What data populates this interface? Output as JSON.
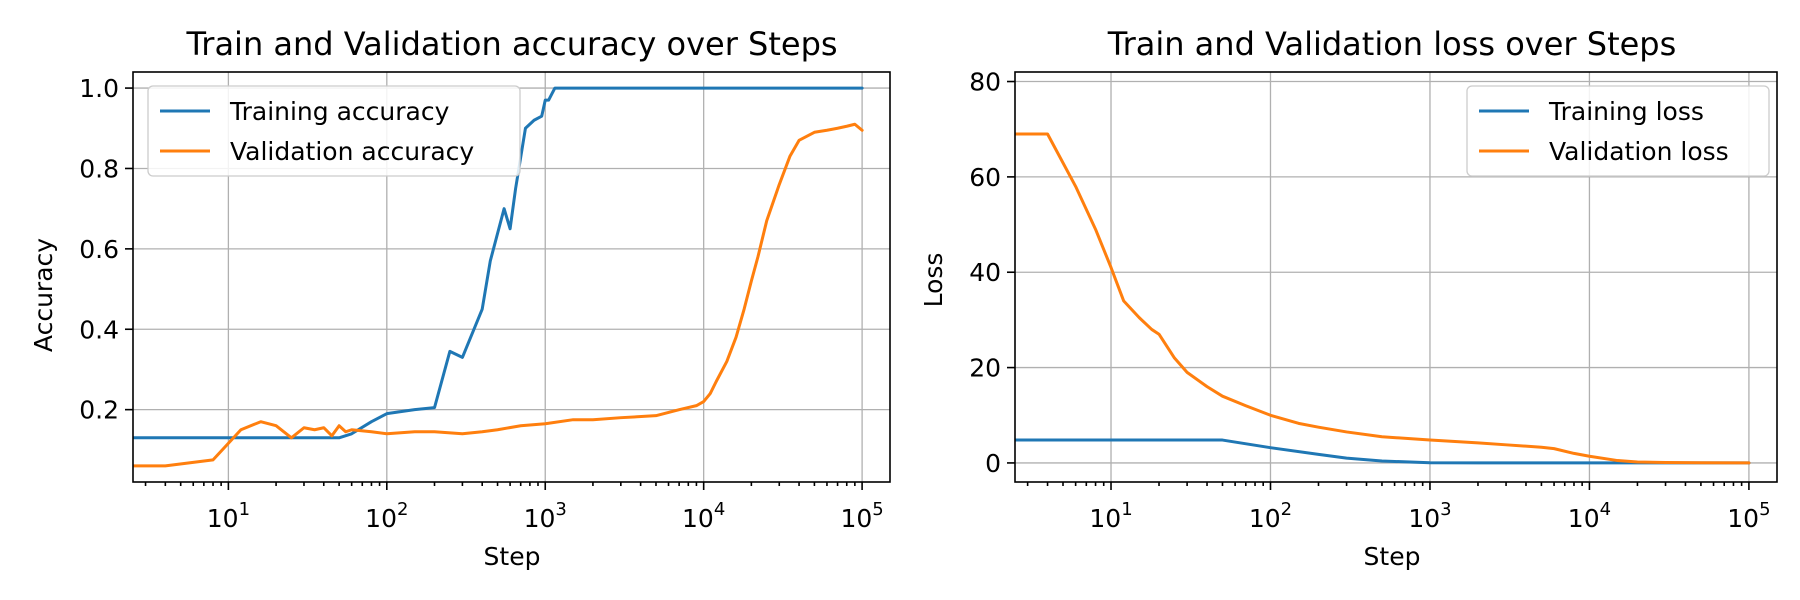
{
  "chart_data": [
    {
      "type": "line",
      "title": "Train and Validation accuracy over Steps",
      "xlabel": "Step",
      "ylabel": "Accuracy",
      "xscale": "log",
      "xlim": [
        2.5,
        150000
      ],
      "ylim": [
        0.02,
        1.04
      ],
      "xticks": [
        10,
        100,
        1000,
        10000,
        100000
      ],
      "xtick_labels": [
        {
          "base": "10",
          "exp": "1"
        },
        {
          "base": "10",
          "exp": "2"
        },
        {
          "base": "10",
          "exp": "3"
        },
        {
          "base": "10",
          "exp": "4"
        },
        {
          "base": "10",
          "exp": "5"
        }
      ],
      "yticks": [
        0.2,
        0.4,
        0.6,
        0.8,
        1.0
      ],
      "ytick_labels": [
        "0.2",
        "0.4",
        "0.6",
        "0.8",
        "1.0"
      ],
      "grid": true,
      "legend": "top-left",
      "series": [
        {
          "name": "Training accuracy",
          "color": "#1f77b4",
          "x": [
            2,
            10,
            20,
            50,
            60,
            80,
            100,
            150,
            200,
            250,
            300,
            400,
            450,
            550,
            600,
            650,
            750,
            850,
            950,
            1000,
            1050,
            1150,
            1250,
            1300,
            1500,
            2000,
            5000,
            10000,
            50000,
            100000
          ],
          "y": [
            0.13,
            0.13,
            0.13,
            0.13,
            0.14,
            0.17,
            0.19,
            0.2,
            0.205,
            0.345,
            0.33,
            0.45,
            0.57,
            0.7,
            0.65,
            0.75,
            0.9,
            0.92,
            0.93,
            0.97,
            0.97,
            1.0,
            1.0,
            1.0,
            1.0,
            1.0,
            1.0,
            1.0,
            1.0,
            1.0
          ]
        },
        {
          "name": "Validation accuracy",
          "color": "#ff7f0e",
          "x": [
            2,
            4,
            8,
            12,
            16,
            20,
            25,
            30,
            35,
            40,
            45,
            50,
            55,
            60,
            80,
            100,
            150,
            200,
            300,
            400,
            500,
            700,
            1000,
            1500,
            2000,
            3000,
            5000,
            7000,
            9000,
            10000,
            11000,
            12000,
            14000,
            16000,
            18000,
            20000,
            22000,
            25000,
            30000,
            35000,
            40000,
            50000,
            60000,
            70000,
            80000,
            90000,
            100000
          ],
          "y": [
            0.06,
            0.06,
            0.075,
            0.15,
            0.17,
            0.16,
            0.13,
            0.155,
            0.15,
            0.155,
            0.135,
            0.16,
            0.145,
            0.15,
            0.145,
            0.14,
            0.145,
            0.145,
            0.14,
            0.145,
            0.15,
            0.16,
            0.165,
            0.175,
            0.175,
            0.18,
            0.185,
            0.2,
            0.21,
            0.22,
            0.24,
            0.27,
            0.32,
            0.38,
            0.45,
            0.52,
            0.58,
            0.67,
            0.76,
            0.83,
            0.87,
            0.89,
            0.895,
            0.9,
            0.905,
            0.91,
            0.895
          ]
        }
      ]
    },
    {
      "type": "line",
      "title": "Train and Validation loss over Steps",
      "xlabel": "Step",
      "ylabel": "Loss",
      "xscale": "log",
      "xlim": [
        2.5,
        150000
      ],
      "ylim": [
        -4,
        82
      ],
      "xticks": [
        10,
        100,
        1000,
        10000,
        100000
      ],
      "xtick_labels": [
        {
          "base": "10",
          "exp": "1"
        },
        {
          "base": "10",
          "exp": "2"
        },
        {
          "base": "10",
          "exp": "3"
        },
        {
          "base": "10",
          "exp": "4"
        },
        {
          "base": "10",
          "exp": "5"
        }
      ],
      "yticks": [
        0,
        20,
        40,
        60,
        80
      ],
      "ytick_labels": [
        "0",
        "20",
        "40",
        "60",
        "80"
      ],
      "grid": true,
      "legend": "top-right",
      "series": [
        {
          "name": "Training loss",
          "color": "#1f77b4",
          "x": [
            2,
            10,
            30,
            50,
            100,
            200,
            300,
            500,
            1000,
            2000,
            5000,
            10000,
            100000
          ],
          "y": [
            4.8,
            4.8,
            4.8,
            4.8,
            3.2,
            1.8,
            1.0,
            0.4,
            0.05,
            0.0,
            0.0,
            0.0,
            0.0
          ],
          "smooth": false
        },
        {
          "name": "Validation loss",
          "color": "#ff7f0e",
          "x": [
            2,
            4,
            6,
            8,
            10,
            12,
            15,
            18,
            20,
            25,
            30,
            40,
            50,
            70,
            100,
            150,
            200,
            300,
            500,
            1000,
            2000,
            3000,
            5000,
            6000,
            8000,
            10000,
            15000,
            20000,
            30000,
            50000,
            100000
          ],
          "y": [
            69,
            69,
            58,
            49,
            41,
            34,
            30.5,
            28,
            27,
            22,
            19,
            16,
            14,
            12,
            10,
            8.3,
            7.5,
            6.5,
            5.5,
            4.8,
            4.2,
            3.8,
            3.3,
            3.0,
            2.0,
            1.4,
            0.5,
            0.2,
            0.1,
            0.05,
            0.0
          ]
        }
      ]
    }
  ]
}
